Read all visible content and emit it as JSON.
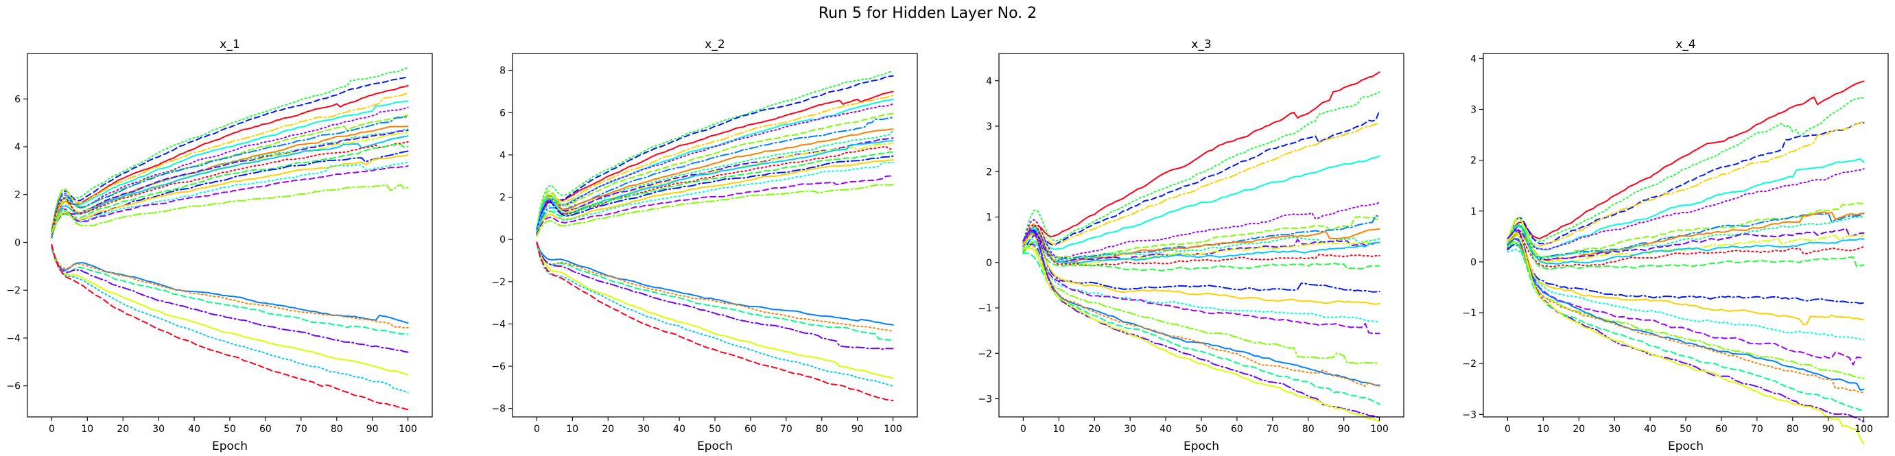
{
  "figure": {
    "suptitle": "Run 5 for Hidden Layer No. 2"
  },
  "chart_data": [
    {
      "type": "line",
      "title": "x_1",
      "xlabel": "Epoch",
      "ylabel": "",
      "xlim": [
        0,
        100
      ],
      "ylim": [
        -7.3,
        7.9
      ],
      "xticks": [
        0,
        10,
        20,
        30,
        40,
        50,
        60,
        70,
        80,
        90,
        100
      ],
      "yticks": [
        -6,
        -4,
        -2,
        0,
        2,
        4,
        6
      ],
      "upper_endpoints": [
        6.6,
        7.2,
        7.0,
        6.1,
        5.9,
        5.6,
        5.4,
        5.2,
        4.9,
        4.8,
        4.7,
        4.6,
        4.5,
        4.3,
        4.1,
        3.9,
        3.6,
        3.4,
        3.2,
        2.5
      ],
      "lower_endpoints": [
        -3.4,
        -3.5,
        -3.9,
        -4.6,
        -5.5,
        -6.1,
        -7.0
      ]
    },
    {
      "type": "line",
      "title": "x_2",
      "xlabel": "Epoch",
      "ylabel": "",
      "xlim": [
        0,
        100
      ],
      "ylim": [
        -8.4,
        8.8
      ],
      "xticks": [
        0,
        10,
        20,
        30,
        40,
        50,
        60,
        70,
        80,
        90,
        100
      ],
      "yticks": [
        -8,
        -6,
        -4,
        -2,
        0,
        2,
        4,
        6,
        8
      ],
      "upper_endpoints": [
        7.2,
        8.0,
        7.8,
        6.8,
        6.6,
        6.4,
        6.0,
        5.6,
        5.3,
        5.0,
        4.8,
        4.7,
        4.6,
        4.4,
        4.2,
        4.0,
        3.8,
        3.5,
        3.0,
        2.6
      ],
      "lower_endpoints": [
        -4.1,
        -4.3,
        -4.6,
        -5.1,
        -6.5,
        -6.9,
        -7.6
      ]
    },
    {
      "type": "line",
      "title": "x_3",
      "xlabel": "Epoch",
      "ylabel": "",
      "xlim": [
        0,
        100
      ],
      "ylim": [
        -3.4,
        4.6
      ],
      "xticks": [
        0,
        10,
        20,
        30,
        40,
        50,
        60,
        70,
        80,
        90,
        100
      ],
      "yticks": [
        -3,
        -2,
        -1,
        0,
        1,
        2,
        3,
        4
      ],
      "upper_endpoints": [
        4.3,
        3.8,
        3.5,
        3.2,
        2.5,
        1.5,
        1.1,
        1.0,
        0.9,
        0.8,
        0.7,
        0.6,
        0.5,
        0.3,
        0.1
      ],
      "lower_endpoints": [
        -0.1,
        -0.4,
        -0.8,
        -1.0,
        -1.7,
        -2.2,
        -2.3,
        -2.5,
        -2.9,
        -3.0
      ]
    },
    {
      "type": "line",
      "title": "x_4",
      "xlabel": "Epoch",
      "ylabel": "",
      "xlim": [
        0,
        100
      ],
      "ylim": [
        -3.05,
        4.1
      ],
      "xticks": [
        0,
        10,
        20,
        30,
        40,
        50,
        60,
        70,
        80,
        90,
        100
      ],
      "yticks": [
        -3,
        -2,
        -1,
        0,
        1,
        2,
        3,
        4
      ],
      "upper_endpoints": [
        3.8,
        3.5,
        2.9,
        2.8,
        2.2,
        2.0,
        1.3,
        1.2,
        1.1,
        1.0,
        0.9,
        0.7,
        0.6,
        0.5,
        0.2
      ],
      "lower_endpoints": [
        -0.3,
        -0.7,
        -1.0,
        -1.5,
        -1.8,
        -1.9,
        -2.0,
        -2.4,
        -2.6,
        -2.7
      ]
    }
  ]
}
